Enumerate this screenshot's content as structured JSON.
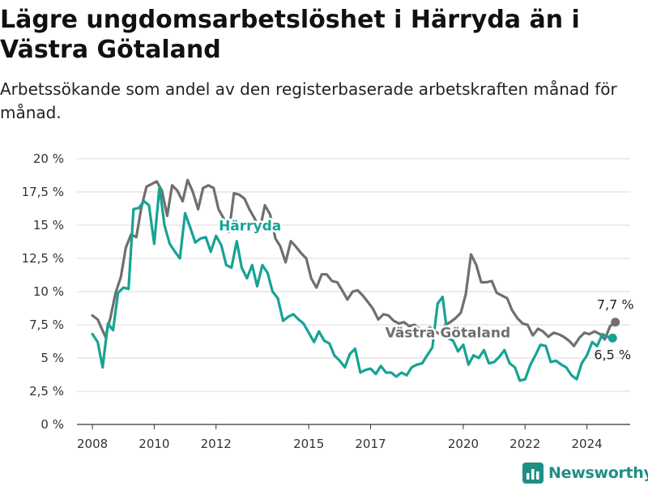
{
  "title": "Lägre ungdomsarbetslöshet i Härryda än i Västra Götaland",
  "subtitle": "Arbetssökande som andel av den registerbaserade arbetskraften månad för månad.",
  "brand": {
    "name": "Newsworthy",
    "color": "#1f8f84",
    "icon": "bar-chart-logo-icon"
  },
  "chart_data": {
    "type": "line",
    "x_unit": "year",
    "xlim": [
      2007.5,
      2025.4
    ],
    "ylim": [
      0,
      20
    ],
    "x_ticks": [
      {
        "value": 2008,
        "label": "2008"
      },
      {
        "value": 2010,
        "label": "2010"
      },
      {
        "value": 2012,
        "label": "2012"
      },
      {
        "value": 2015,
        "label": "2015"
      },
      {
        "value": 2017,
        "label": "2017"
      },
      {
        "value": 2020,
        "label": "2020"
      },
      {
        "value": 2022,
        "label": "2022"
      },
      {
        "value": 2024,
        "label": "2024"
      }
    ],
    "y_ticks": [
      {
        "value": 0,
        "label": "0 %"
      },
      {
        "value": 2.5,
        "label": "2,5 %"
      },
      {
        "value": 5,
        "label": "5 %"
      },
      {
        "value": 7.5,
        "label": "7,5 %"
      },
      {
        "value": 10,
        "label": "10 %"
      },
      {
        "value": 12.5,
        "label": "12,5 %"
      },
      {
        "value": 15,
        "label": "15 %"
      },
      {
        "value": 17.5,
        "label": "17,5 %"
      },
      {
        "value": 20,
        "label": "20 %"
      }
    ],
    "grid": true,
    "series": [
      {
        "name": "Västra Götaland",
        "color": "#6f6f6f",
        "end_label": "7,7 %",
        "x": [
          2008.0,
          2008.17,
          2008.42,
          2008.58,
          2008.75,
          2008.92,
          2009.08,
          2009.25,
          2009.42,
          2009.58,
          2009.75,
          2009.92,
          2010.08,
          2010.25,
          2010.42,
          2010.58,
          2010.75,
          2010.92,
          2011.08,
          2011.25,
          2011.42,
          2011.58,
          2011.75,
          2011.92,
          2012.08,
          2012.25,
          2012.42,
          2012.58,
          2012.75,
          2012.92,
          2013.08,
          2013.25,
          2013.42,
          2013.58,
          2013.75,
          2013.92,
          2014.08,
          2014.25,
          2014.42,
          2014.58,
          2014.75,
          2014.92,
          2015.08,
          2015.25,
          2015.42,
          2015.58,
          2015.75,
          2015.92,
          2016.08,
          2016.25,
          2016.42,
          2016.58,
          2016.75,
          2016.92,
          2017.08,
          2017.25,
          2017.42,
          2017.58,
          2017.75,
          2017.92,
          2018.08,
          2018.25,
          2018.42,
          2018.58,
          2018.75,
          2018.92,
          2019.08,
          2019.25,
          2019.42,
          2019.58,
          2019.75,
          2019.92,
          2020.08,
          2020.25,
          2020.42,
          2020.58,
          2020.75,
          2020.92,
          2021.08,
          2021.25,
          2021.42,
          2021.58,
          2021.75,
          2021.92,
          2022.08,
          2022.25,
          2022.42,
          2022.58,
          2022.75,
          2022.92,
          2023.08,
          2023.25,
          2023.42,
          2023.58,
          2023.75,
          2023.92,
          2024.08,
          2024.25,
          2024.42,
          2024.58,
          2024.75,
          2024.92
        ],
        "values": [
          8.2,
          7.9,
          6.6,
          8.0,
          9.9,
          11.1,
          13.3,
          14.3,
          14.1,
          16.3,
          17.9,
          18.1,
          18.3,
          17.6,
          15.7,
          18.0,
          17.6,
          16.8,
          18.4,
          17.5,
          16.2,
          17.8,
          18.0,
          17.8,
          16.2,
          15.5,
          14.5,
          17.4,
          17.3,
          17.0,
          16.2,
          15.5,
          14.7,
          16.5,
          15.8,
          14.0,
          13.4,
          12.2,
          13.8,
          13.4,
          12.9,
          12.5,
          11.0,
          10.3,
          11.3,
          11.3,
          10.8,
          10.7,
          10.1,
          9.4,
          10.0,
          10.1,
          9.7,
          9.2,
          8.7,
          7.9,
          8.3,
          8.2,
          7.8,
          7.6,
          7.7,
          7.4,
          7.5,
          7.2,
          7.0,
          7.3,
          7.0,
          6.8,
          7.5,
          7.7,
          8.0,
          8.4,
          9.8,
          12.8,
          12.0,
          10.7,
          10.7,
          10.8,
          9.9,
          9.7,
          9.5,
          8.6,
          8.0,
          7.6,
          7.5,
          6.7,
          7.2,
          7.0,
          6.6,
          6.9,
          6.8,
          6.6,
          6.3,
          5.9,
          6.5,
          6.9,
          6.8,
          7.0,
          6.8,
          6.4,
          7.4,
          7.7
        ]
      },
      {
        "name": "Härryda",
        "color": "#16a394",
        "end_label": "6,5 %",
        "x": [
          2008.0,
          2008.17,
          2008.33,
          2008.5,
          2008.67,
          2008.83,
          2009.0,
          2009.17,
          2009.33,
          2009.5,
          2009.67,
          2009.83,
          2010.0,
          2010.17,
          2010.33,
          2010.5,
          2010.67,
          2010.83,
          2011.0,
          2011.17,
          2011.33,
          2011.5,
          2011.67,
          2011.83,
          2012.0,
          2012.17,
          2012.33,
          2012.5,
          2012.67,
          2012.83,
          2013.0,
          2013.17,
          2013.33,
          2013.5,
          2013.67,
          2013.83,
          2014.0,
          2014.17,
          2014.33,
          2014.5,
          2014.67,
          2014.83,
          2015.0,
          2015.17,
          2015.33,
          2015.5,
          2015.67,
          2015.83,
          2016.0,
          2016.17,
          2016.33,
          2016.5,
          2016.67,
          2016.83,
          2017.0,
          2017.17,
          2017.33,
          2017.5,
          2017.67,
          2017.83,
          2018.0,
          2018.17,
          2018.33,
          2018.5,
          2018.67,
          2018.83,
          2019.0,
          2019.17,
          2019.33,
          2019.5,
          2019.67,
          2019.83,
          2020.0,
          2020.17,
          2020.33,
          2020.5,
          2020.67,
          2020.83,
          2021.0,
          2021.17,
          2021.33,
          2021.5,
          2021.67,
          2021.83,
          2022.0,
          2022.17,
          2022.33,
          2022.5,
          2022.67,
          2022.83,
          2023.0,
          2023.17,
          2023.33,
          2023.5,
          2023.67,
          2023.83,
          2024.0,
          2024.17,
          2024.33,
          2024.5,
          2024.67,
          2024.83
        ],
        "values": [
          6.8,
          6.2,
          4.3,
          7.6,
          7.1,
          9.9,
          10.3,
          10.2,
          16.2,
          16.3,
          16.8,
          16.5,
          13.6,
          17.9,
          15.0,
          13.6,
          13.0,
          12.5,
          15.9,
          14.8,
          13.7,
          14.0,
          14.1,
          13.0,
          14.2,
          13.5,
          12.0,
          11.8,
          13.8,
          11.8,
          11.0,
          12.0,
          10.4,
          12.0,
          11.4,
          10.0,
          9.5,
          7.8,
          8.1,
          8.3,
          7.9,
          7.6,
          6.9,
          6.2,
          7.0,
          6.3,
          6.1,
          5.2,
          4.8,
          4.3,
          5.3,
          5.7,
          3.9,
          4.1,
          4.2,
          3.8,
          4.4,
          3.9,
          3.9,
          3.6,
          3.9,
          3.7,
          4.3,
          4.5,
          4.6,
          5.2,
          5.8,
          9.1,
          9.6,
          6.5,
          6.3,
          5.5,
          6.0,
          4.5,
          5.2,
          5.0,
          5.6,
          4.6,
          4.7,
          5.1,
          5.6,
          4.6,
          4.3,
          3.3,
          3.4,
          4.5,
          5.2,
          6.0,
          5.9,
          4.7,
          4.8,
          4.5,
          4.3,
          3.7,
          3.4,
          4.6,
          5.2,
          6.2,
          5.9,
          6.8,
          6.6,
          6.5
        ]
      }
    ]
  }
}
